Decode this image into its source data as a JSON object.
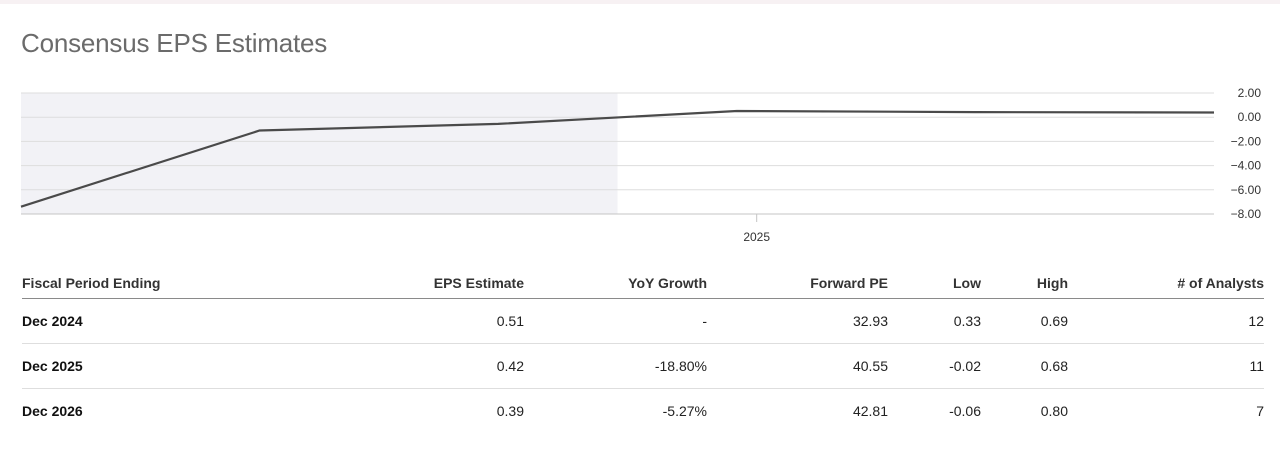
{
  "title": "Consensus EPS Estimates",
  "chart_data": {
    "type": "line",
    "x": [
      "2021-12",
      "2022-12",
      "2023-12",
      "2024-12",
      "2025-12",
      "2026-12"
    ],
    "values": [
      -7.4,
      -1.1,
      -0.55,
      0.51,
      0.42,
      0.39
    ],
    "ylim": [
      -8.0,
      2.0
    ],
    "yticks": [
      "2.00",
      "0.00",
      "-2.00",
      "-4.00",
      "-6.00",
      "-8.00"
    ],
    "xticks": [
      "2025"
    ],
    "grid": true,
    "historical_shading_until": "2024-06",
    "line_color": "#4a4a4a",
    "shade_color": "#f2f2f6"
  },
  "table": {
    "headers": [
      "Fiscal Period Ending",
      "EPS Estimate",
      "YoY Growth",
      "Forward PE",
      "Low",
      "High",
      "# of Analysts"
    ],
    "rows": [
      [
        "Dec 2024",
        "0.51",
        "-",
        "32.93",
        "0.33",
        "0.69",
        "12"
      ],
      [
        "Dec 2025",
        "0.42",
        "-18.80%",
        "40.55",
        "-0.02",
        "0.68",
        "11"
      ],
      [
        "Dec 2026",
        "0.39",
        "-5.27%",
        "42.81",
        "-0.06",
        "0.80",
        "7"
      ]
    ]
  }
}
